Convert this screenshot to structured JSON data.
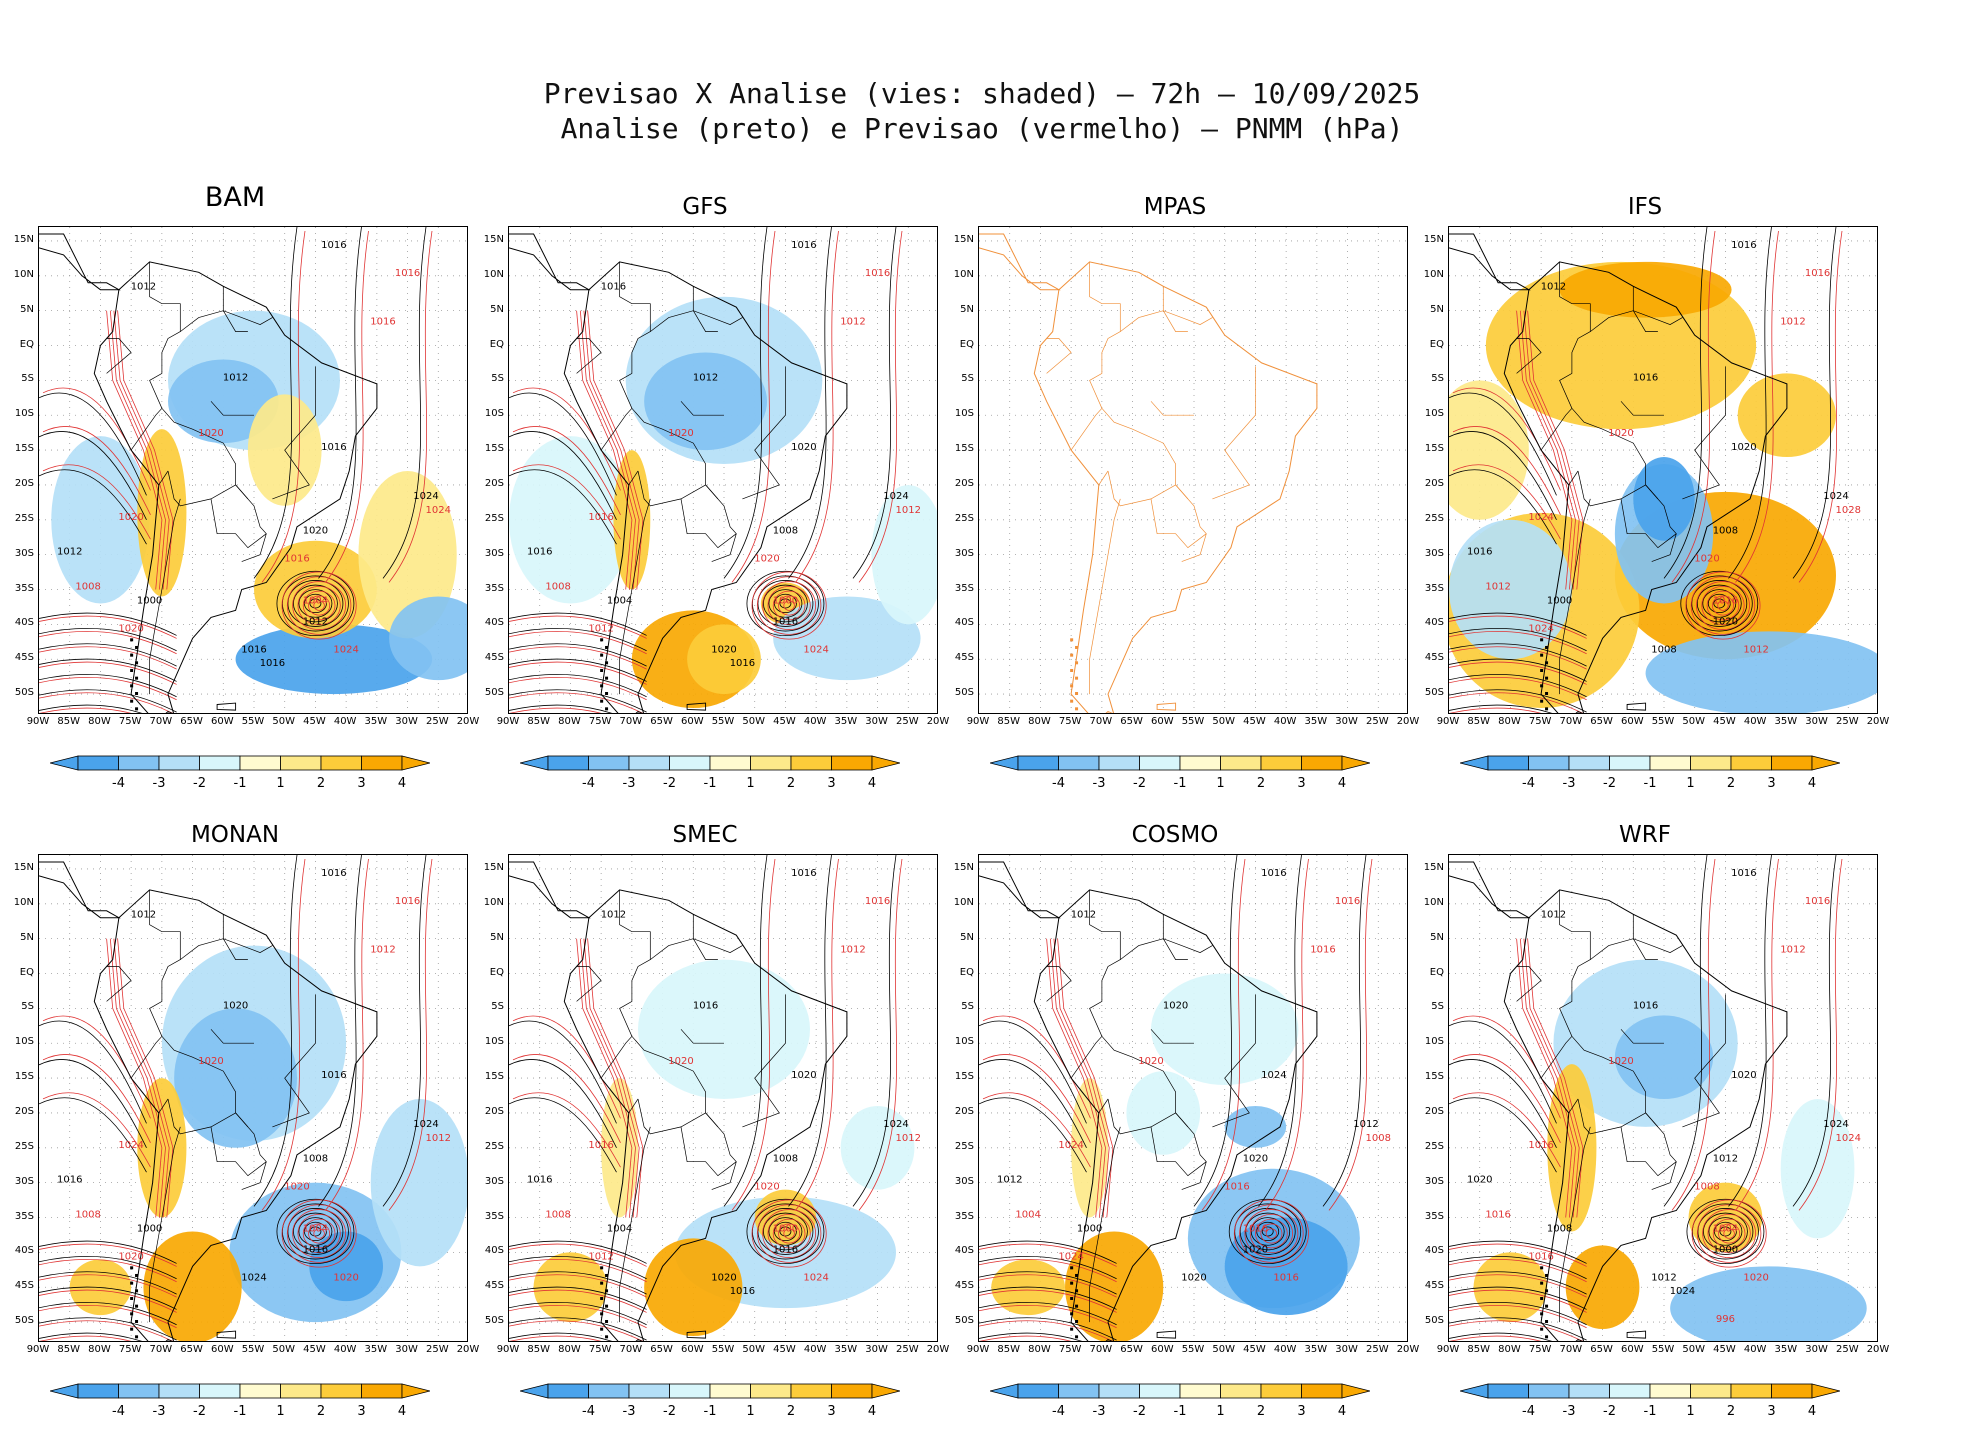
{
  "title_line1": "Previsao X Analise (vies: shaded) – 72h – 10/09/2025",
  "title_line2": "Analise (preto) e Previsao (vermelho) – PNMM (hPa)",
  "lat_labels": [
    "15N",
    "10N",
    "5N",
    "EQ",
    "5S",
    "10S",
    "15S",
    "20S",
    "25S",
    "30S",
    "35S",
    "40S",
    "45S",
    "50S"
  ],
  "lon_labels": [
    "90W",
    "85W",
    "80W",
    "75W",
    "70W",
    "65W",
    "60W",
    "55W",
    "50W",
    "45W",
    "40W",
    "35W",
    "30W",
    "25W",
    "20W"
  ],
  "colorbar_labels": [
    "-4",
    "-3",
    "-2",
    "-1",
    "1",
    "2",
    "3",
    "4"
  ],
  "colors": {
    "neg4": "#4aa3ec",
    "neg3": "#82c2f2",
    "neg2": "#b4dff7",
    "neg1": "#d8f6fb",
    "pos1": "#fffbd0",
    "pos2": "#fde98a",
    "pos3": "#fccc3a",
    "pos4": "#f9a802",
    "analysis": "#000000",
    "forecast": "#e03434",
    "coast_mpas": "#f0903a"
  },
  "panels": [
    {
      "name": "BAM",
      "has_data": true
    },
    {
      "name": "GFS",
      "has_data": true
    },
    {
      "name": "MPAS",
      "has_data": false
    },
    {
      "name": "IFS",
      "has_data": true
    },
    {
      "name": "MONAN",
      "has_data": true
    },
    {
      "name": "SMEC",
      "has_data": true
    },
    {
      "name": "COSMO",
      "has_data": true
    },
    {
      "name": "WRF",
      "has_data": true
    }
  ],
  "contour_labels": {
    "BAM": [
      "1016",
      "1016",
      "1012",
      "1016",
      "1012",
      "1020",
      "1016",
      "1020",
      "1024",
      "1024",
      "1020",
      "1016",
      "1012",
      "1008",
      "1000",
      "1004",
      "1012",
      "1020",
      "1016",
      "1024",
      "1016"
    ],
    "GFS": [
      "1016",
      "1016",
      "1016",
      "1012",
      "1012",
      "1020",
      "1020",
      "1016",
      "1024",
      "1012",
      "1008",
      "1020",
      "1016",
      "1008",
      "1004",
      "1000",
      "1016",
      "1012",
      "1020",
      "1024",
      "1016"
    ],
    "MPAS": [],
    "IFS": [
      "1016",
      "1016",
      "1012",
      "1012",
      "1016",
      "1020",
      "1020",
      "1024",
      "1024",
      "1028",
      "1008",
      "1020",
      "1016",
      "1012",
      "1000",
      "1016",
      "1020",
      "1024",
      "1008",
      "1012"
    ],
    "MONAN": [
      "1016",
      "1016",
      "1012",
      "1012",
      "1020",
      "1020",
      "1016",
      "1024",
      "1024",
      "1012",
      "1008",
      "1020",
      "1016",
      "1008",
      "1000",
      "1004",
      "1016",
      "1020",
      "1024",
      "1020"
    ],
    "SMEC": [
      "1016",
      "1016",
      "1012",
      "1012",
      "1016",
      "1020",
      "1020",
      "1016",
      "1024",
      "1012",
      "1008",
      "1020",
      "1016",
      "1008",
      "1004",
      "1000",
      "1016",
      "1012",
      "1020",
      "1024",
      "1016"
    ],
    "COSMO": [
      "1016",
      "1016",
      "1012",
      "1016",
      "1020",
      "1020",
      "1024",
      "1024",
      "1012",
      "1008",
      "1020",
      "1016",
      "1012",
      "1004",
      "1000",
      "1016",
      "1020",
      "1024",
      "1020",
      "1016"
    ],
    "WRF": [
      "1016",
      "1016",
      "1012",
      "1012",
      "1016",
      "1020",
      "1020",
      "1016",
      "1024",
      "1024",
      "1012",
      "1008",
      "1020",
      "1016",
      "1008",
      "1004",
      "1000",
      "1016",
      "1012",
      "1020",
      "1024",
      "996"
    ]
  }
}
